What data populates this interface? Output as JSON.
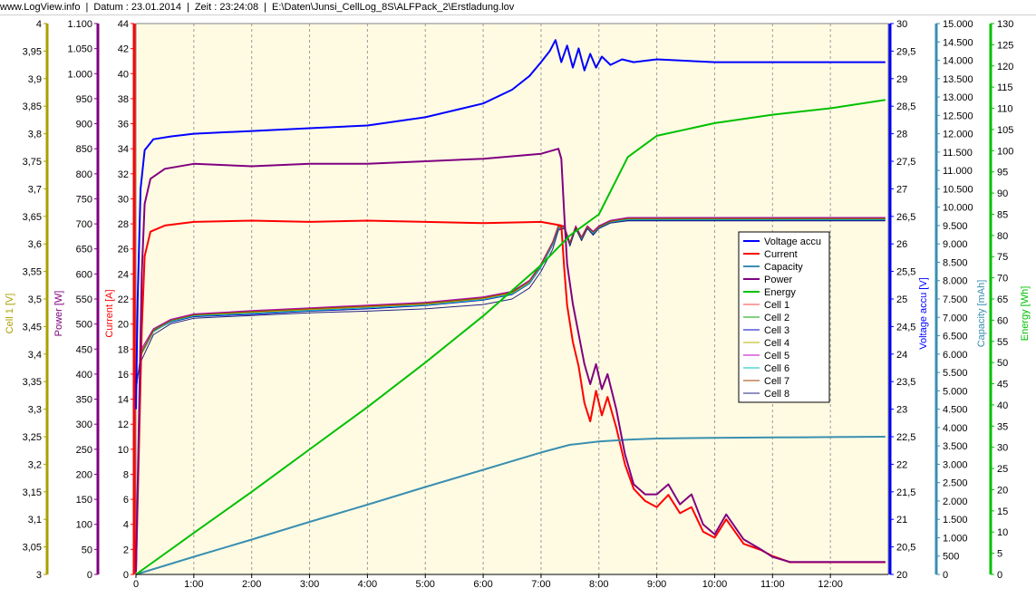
{
  "header": {
    "site": "www.LogView.info",
    "date": "Datum : 23.01.2014",
    "time": "Zeit : 23:24:08",
    "path": "E:\\Daten\\Junsi_CellLog_8S\\ALFPack_2\\Erstladung.lov"
  },
  "colors": {
    "plot_background": "#fffbe3",
    "grid": "#9a9a9a",
    "cell_axis": "#a8a000",
    "power_axis": "#800080",
    "current_axis": "#ff0000",
    "voltage_axis": "#0000ff",
    "capacity_axis": "#3a8fb0",
    "energy_axis": "#00c000"
  },
  "chart_data": {
    "type": "line",
    "x_unit": "h:mm",
    "x_range": [
      0,
      13.0
    ],
    "x_ticks": [
      "0",
      "1:00",
      "2:00",
      "3:00",
      "4:00",
      "5:00",
      "6:00",
      "7:00",
      "8:00",
      "9:00",
      "10:00",
      "11:00",
      "12:00"
    ],
    "grid": true,
    "legend_position": "center-right",
    "axes": {
      "cell": {
        "label": "Cell 1 [V]",
        "range": [
          3,
          4
        ],
        "ticks": [
          "3",
          "3,05",
          "3,1",
          "3,15",
          "3,2",
          "3,25",
          "3,3",
          "3,35",
          "3,4",
          "3,45",
          "3,5",
          "3,55",
          "3,6",
          "3,65",
          "3,7",
          "3,75",
          "3,8",
          "3,85",
          "3,9",
          "3,95",
          "4"
        ]
      },
      "power": {
        "label": "Power [W]",
        "range": [
          0,
          1100
        ],
        "ticks": [
          "0",
          "50",
          "100",
          "150",
          "200",
          "250",
          "300",
          "350",
          "400",
          "450",
          "500",
          "550",
          "600",
          "650",
          "700",
          "750",
          "800",
          "850",
          "900",
          "950",
          "1.000",
          "1.050",
          "1.100"
        ]
      },
      "current": {
        "label": "Current [A]",
        "range": [
          0,
          45
        ],
        "ticks": [
          "0",
          "2",
          "4",
          "6",
          "8",
          "10",
          "12",
          "14",
          "16",
          "18",
          "20",
          "22",
          "24",
          "26",
          "28",
          "30",
          "32",
          "34",
          "36",
          "38",
          "40",
          "42",
          "44"
        ]
      },
      "voltage": {
        "label": "Voltage accu [V]",
        "range": [
          20,
          30
        ],
        "ticks": [
          "20",
          "20,5",
          "21",
          "21,5",
          "22",
          "22,5",
          "23",
          "23,5",
          "24",
          "24,5",
          "25",
          "25,5",
          "26",
          "26,5",
          "27",
          "27,5",
          "28",
          "28,5",
          "29",
          "29,5",
          "30"
        ]
      },
      "capacity": {
        "label": "Capacity [mAh]",
        "range": [
          0,
          15000
        ],
        "ticks": [
          "0",
          "500",
          "1.000",
          "1.500",
          "2.000",
          "2.500",
          "3.000",
          "3.500",
          "4.000",
          "4.500",
          "5.000",
          "5.500",
          "6.000",
          "6.500",
          "7.000",
          "7.500",
          "8.000",
          "8.500",
          "9.000",
          "9.500",
          "10.000",
          "10.500",
          "11.000",
          "11.500",
          "12.000",
          "12.500",
          "13.000",
          "13.500",
          "14.000",
          "14.500",
          "15.000"
        ]
      },
      "energy": {
        "label": "Energy [Wh]",
        "range": [
          0,
          130
        ],
        "ticks": [
          "0",
          "5",
          "10",
          "15",
          "20",
          "25",
          "30",
          "35",
          "40",
          "45",
          "50",
          "55",
          "60",
          "65",
          "70",
          "75",
          "80",
          "85",
          "90",
          "95",
          "100",
          "105",
          "110",
          "115",
          "120",
          "125",
          "130"
        ]
      }
    },
    "series": [
      {
        "name": "Voltage accu",
        "axis": "voltage",
        "color": "#0000ff",
        "x": [
          0,
          0.03,
          0.08,
          0.15,
          0.3,
          0.6,
          1.0,
          2.0,
          3.0,
          4.0,
          5.0,
          6.0,
          6.5,
          6.8,
          7.0,
          7.15,
          7.2,
          7.25,
          7.35,
          7.45,
          7.55,
          7.65,
          7.75,
          7.85,
          7.95,
          8.05,
          8.2,
          8.4,
          8.6,
          9.0,
          10.0,
          11.0,
          12.0,
          12.95
        ],
        "y": [
          23.0,
          25.0,
          27.0,
          27.7,
          27.9,
          27.95,
          28.0,
          28.05,
          28.1,
          28.15,
          28.3,
          28.55,
          28.8,
          29.05,
          29.3,
          29.5,
          29.6,
          29.7,
          29.3,
          29.6,
          29.2,
          29.55,
          29.15,
          29.45,
          29.2,
          29.4,
          29.25,
          29.35,
          29.3,
          29.35,
          29.3,
          29.3,
          29.3,
          29.3
        ]
      },
      {
        "name": "Current",
        "axis": "current",
        "color": "#ff0000",
        "x": [
          0,
          0.05,
          0.1,
          0.15,
          0.25,
          0.5,
          1.0,
          2.0,
          3.0,
          4.0,
          5.0,
          6.0,
          7.0,
          7.35,
          7.4,
          7.45,
          7.55,
          7.65,
          7.75,
          7.85,
          7.95,
          8.05,
          8.15,
          8.3,
          8.45,
          8.6,
          8.8,
          9.0,
          9.2,
          9.4,
          9.6,
          9.8,
          10.0,
          10.2,
          10.5,
          10.8,
          11.0,
          11.3,
          11.6,
          12.0,
          12.5,
          12.95
        ],
        "y": [
          0.2,
          10.0,
          20.0,
          26.0,
          28.0,
          28.5,
          28.8,
          28.9,
          28.8,
          28.9,
          28.8,
          28.7,
          28.8,
          28.5,
          25.0,
          22.0,
          19.0,
          17.0,
          14.0,
          12.5,
          15.0,
          13.0,
          14.5,
          12.0,
          9.0,
          7.0,
          6.0,
          5.5,
          6.5,
          5.0,
          5.5,
          3.5,
          3.0,
          4.5,
          2.5,
          2.0,
          1.5,
          1.0,
          1.0,
          1.0,
          1.0,
          1.0
        ]
      },
      {
        "name": "Capacity",
        "axis": "capacity",
        "color": "#3a8fb0",
        "x": [
          0,
          1,
          2,
          3,
          4,
          5,
          6,
          7,
          7.5,
          8,
          8.5,
          9,
          10,
          11,
          12,
          12.95
        ],
        "y": [
          0,
          480,
          950,
          1430,
          1900,
          2380,
          2850,
          3320,
          3530,
          3620,
          3670,
          3700,
          3720,
          3730,
          3740,
          3750
        ]
      },
      {
        "name": "Power",
        "axis": "power",
        "color": "#800080",
        "x": [
          0,
          0.05,
          0.1,
          0.15,
          0.25,
          0.5,
          1.0,
          2.0,
          3.0,
          4.0,
          5.0,
          6.0,
          7.0,
          7.3,
          7.35,
          7.4,
          7.45,
          7.55,
          7.65,
          7.75,
          7.85,
          7.95,
          8.05,
          8.15,
          8.3,
          8.45,
          8.6,
          8.8,
          9.0,
          9.2,
          9.4,
          9.6,
          9.8,
          10.0,
          10.2,
          10.5,
          10.8,
          11.0,
          11.3,
          11.6,
          12.0,
          12.5,
          12.95
        ],
        "y": [
          5,
          300,
          600,
          740,
          790,
          810,
          820,
          815,
          820,
          820,
          825,
          830,
          840,
          850,
          830,
          720,
          620,
          540,
          480,
          420,
          380,
          420,
          370,
          400,
          330,
          240,
          180,
          160,
          160,
          180,
          140,
          160,
          100,
          80,
          120,
          70,
          50,
          35,
          25,
          25,
          25,
          25,
          25
        ]
      },
      {
        "name": "Energy",
        "axis": "energy",
        "color": "#00c000",
        "x": [
          0,
          1,
          2,
          3,
          4,
          5,
          6,
          7,
          7.5,
          8,
          8.5,
          9,
          10,
          11,
          12,
          12.95
        ],
        "y": [
          0,
          9.8,
          19.5,
          29.5,
          39.5,
          50.0,
          61.0,
          73.0,
          80.0,
          85.0,
          98.5,
          103.5,
          106.5,
          108.5,
          110.0,
          112.0
        ]
      },
      {
        "name": "Cell 1",
        "axis": "cell",
        "color": "#ff4040",
        "x": [
          0,
          0.03,
          0.1,
          0.3,
          0.6,
          1.0,
          2.0,
          3.0,
          4.0,
          5.0,
          6.0,
          6.5,
          6.8,
          7.0,
          7.2,
          7.3,
          7.4,
          7.5,
          7.6,
          7.7,
          7.8,
          7.9,
          8.0,
          8.2,
          8.5,
          9.0,
          10.0,
          11.0,
          12.0,
          12.95
        ],
        "y": [
          3.33,
          3.36,
          3.4,
          3.44,
          3.46,
          3.47,
          3.475,
          3.48,
          3.485,
          3.49,
          3.5,
          3.51,
          3.53,
          3.56,
          3.6,
          3.63,
          3.63,
          3.6,
          3.63,
          3.61,
          3.63,
          3.62,
          3.63,
          3.64,
          3.645,
          3.645,
          3.645,
          3.645,
          3.645,
          3.645
        ]
      },
      {
        "name": "Cell 2",
        "axis": "cell",
        "color": "#00a000",
        "x": [
          0,
          0.03,
          0.1,
          0.3,
          0.6,
          1.0,
          2.0,
          3.0,
          4.0,
          5.0,
          6.0,
          6.5,
          6.8,
          7.0,
          7.2,
          7.3,
          7.4,
          7.5,
          7.6,
          7.7,
          7.8,
          7.9,
          8.0,
          8.2,
          8.5,
          9.0,
          10.0,
          11.0,
          12.0,
          12.95
        ],
        "y": [
          3.33,
          3.36,
          3.41,
          3.445,
          3.462,
          3.472,
          3.478,
          3.483,
          3.488,
          3.493,
          3.503,
          3.513,
          3.533,
          3.563,
          3.603,
          3.633,
          3.632,
          3.602,
          3.632,
          3.612,
          3.632,
          3.622,
          3.632,
          3.642,
          3.647,
          3.647,
          3.647,
          3.647,
          3.647,
          3.647
        ]
      },
      {
        "name": "Cell 3",
        "axis": "cell",
        "color": "#0000c0",
        "x": [
          0,
          0.03,
          0.1,
          0.3,
          0.6,
          1.0,
          2.0,
          3.0,
          4.0,
          5.0,
          6.0,
          6.5,
          6.8,
          7.0,
          7.2,
          7.3,
          7.4,
          7.5,
          7.6,
          7.7,
          7.8,
          7.9,
          8.0,
          8.2,
          8.5,
          9.0,
          10.0,
          11.0,
          12.0,
          12.95
        ],
        "y": [
          3.33,
          3.36,
          3.405,
          3.442,
          3.458,
          3.468,
          3.472,
          3.478,
          3.482,
          3.488,
          3.498,
          3.508,
          3.528,
          3.558,
          3.598,
          3.628,
          3.628,
          3.598,
          3.628,
          3.608,
          3.628,
          3.618,
          3.628,
          3.638,
          3.643,
          3.643,
          3.643,
          3.643,
          3.643,
          3.643
        ]
      },
      {
        "name": "Cell 4",
        "axis": "cell",
        "color": "#b8b000",
        "x": [
          0,
          0.03,
          0.1,
          0.3,
          0.6,
          1.0,
          2.0,
          3.0,
          4.0,
          5.0,
          6.0,
          6.5,
          6.8,
          7.0,
          7.2,
          7.3,
          7.4,
          7.5,
          7.6,
          7.7,
          7.8,
          7.9,
          8.0,
          8.2,
          8.5,
          9.0,
          10.0,
          11.0,
          12.0,
          12.95
        ],
        "y": [
          3.33,
          3.36,
          3.4,
          3.44,
          3.46,
          3.47,
          3.476,
          3.481,
          3.486,
          3.491,
          3.501,
          3.511,
          3.531,
          3.561,
          3.601,
          3.631,
          3.63,
          3.6,
          3.63,
          3.61,
          3.63,
          3.62,
          3.63,
          3.64,
          3.645,
          3.645,
          3.645,
          3.645,
          3.645,
          3.645
        ]
      },
      {
        "name": "Cell 5",
        "axis": "cell",
        "color": "#c000c0",
        "x": [
          0,
          0.03,
          0.1,
          0.3,
          0.6,
          1.0,
          2.0,
          3.0,
          4.0,
          5.0,
          6.0,
          6.5,
          6.8,
          7.0,
          7.2,
          7.3,
          7.4,
          7.5,
          7.6,
          7.7,
          7.8,
          7.9,
          8.0,
          8.2,
          8.5,
          9.0,
          10.0,
          11.0,
          12.0,
          12.95
        ],
        "y": [
          3.33,
          3.36,
          3.41,
          3.446,
          3.463,
          3.473,
          3.479,
          3.484,
          3.489,
          3.494,
          3.504,
          3.514,
          3.534,
          3.564,
          3.604,
          3.634,
          3.633,
          3.603,
          3.633,
          3.613,
          3.633,
          3.623,
          3.633,
          3.643,
          3.648,
          3.648,
          3.648,
          3.648,
          3.648,
          3.648
        ]
      },
      {
        "name": "Cell 6",
        "axis": "cell",
        "color": "#00c0c0",
        "x": [
          0,
          0.03,
          0.1,
          0.3,
          0.6,
          1.0,
          2.0,
          3.0,
          4.0,
          5.0,
          6.0,
          6.5,
          6.8,
          7.0,
          7.2,
          7.3,
          7.4,
          7.5,
          7.6,
          7.7,
          7.8,
          7.9,
          8.0,
          8.2,
          8.5,
          9.0,
          10.0,
          11.0,
          12.0,
          12.95
        ],
        "y": [
          3.33,
          3.36,
          3.402,
          3.441,
          3.459,
          3.469,
          3.474,
          3.479,
          3.484,
          3.489,
          3.499,
          3.509,
          3.529,
          3.559,
          3.599,
          3.629,
          3.629,
          3.599,
          3.629,
          3.609,
          3.629,
          3.619,
          3.629,
          3.639,
          3.644,
          3.644,
          3.644,
          3.644,
          3.644,
          3.644
        ]
      },
      {
        "name": "Cell 7",
        "axis": "cell",
        "color": "#a04000",
        "x": [
          0,
          0.03,
          0.1,
          0.3,
          0.6,
          1.0,
          2.0,
          3.0,
          4.0,
          5.0,
          6.0,
          6.5,
          6.8,
          7.0,
          7.2,
          7.3,
          7.4,
          7.5,
          7.6,
          7.7,
          7.8,
          7.9,
          8.0,
          8.2,
          8.5,
          9.0,
          10.0,
          11.0,
          12.0,
          12.95
        ],
        "y": [
          3.33,
          3.36,
          3.404,
          3.443,
          3.461,
          3.471,
          3.477,
          3.482,
          3.487,
          3.492,
          3.502,
          3.512,
          3.532,
          3.562,
          3.602,
          3.632,
          3.631,
          3.601,
          3.631,
          3.611,
          3.631,
          3.621,
          3.631,
          3.641,
          3.646,
          3.646,
          3.646,
          3.646,
          3.646,
          3.646
        ]
      },
      {
        "name": "Cell 8",
        "axis": "cell",
        "color": "#202080",
        "x": [
          0,
          0.03,
          0.1,
          0.3,
          0.6,
          1.0,
          2.0,
          3.0,
          4.0,
          5.0,
          6.0,
          6.5,
          6.8,
          7.0,
          7.2,
          7.3,
          7.4,
          7.5,
          7.6,
          7.7,
          7.8,
          7.9,
          8.0,
          8.2,
          8.5,
          9.0,
          10.0,
          11.0,
          12.0,
          12.95
        ],
        "y": [
          3.33,
          3.36,
          3.39,
          3.435,
          3.455,
          3.465,
          3.47,
          3.475,
          3.478,
          3.482,
          3.49,
          3.5,
          3.52,
          3.55,
          3.59,
          3.625,
          3.628,
          3.596,
          3.628,
          3.606,
          3.628,
          3.616,
          3.628,
          3.638,
          3.642,
          3.642,
          3.642,
          3.642,
          3.642,
          3.642
        ]
      }
    ]
  }
}
